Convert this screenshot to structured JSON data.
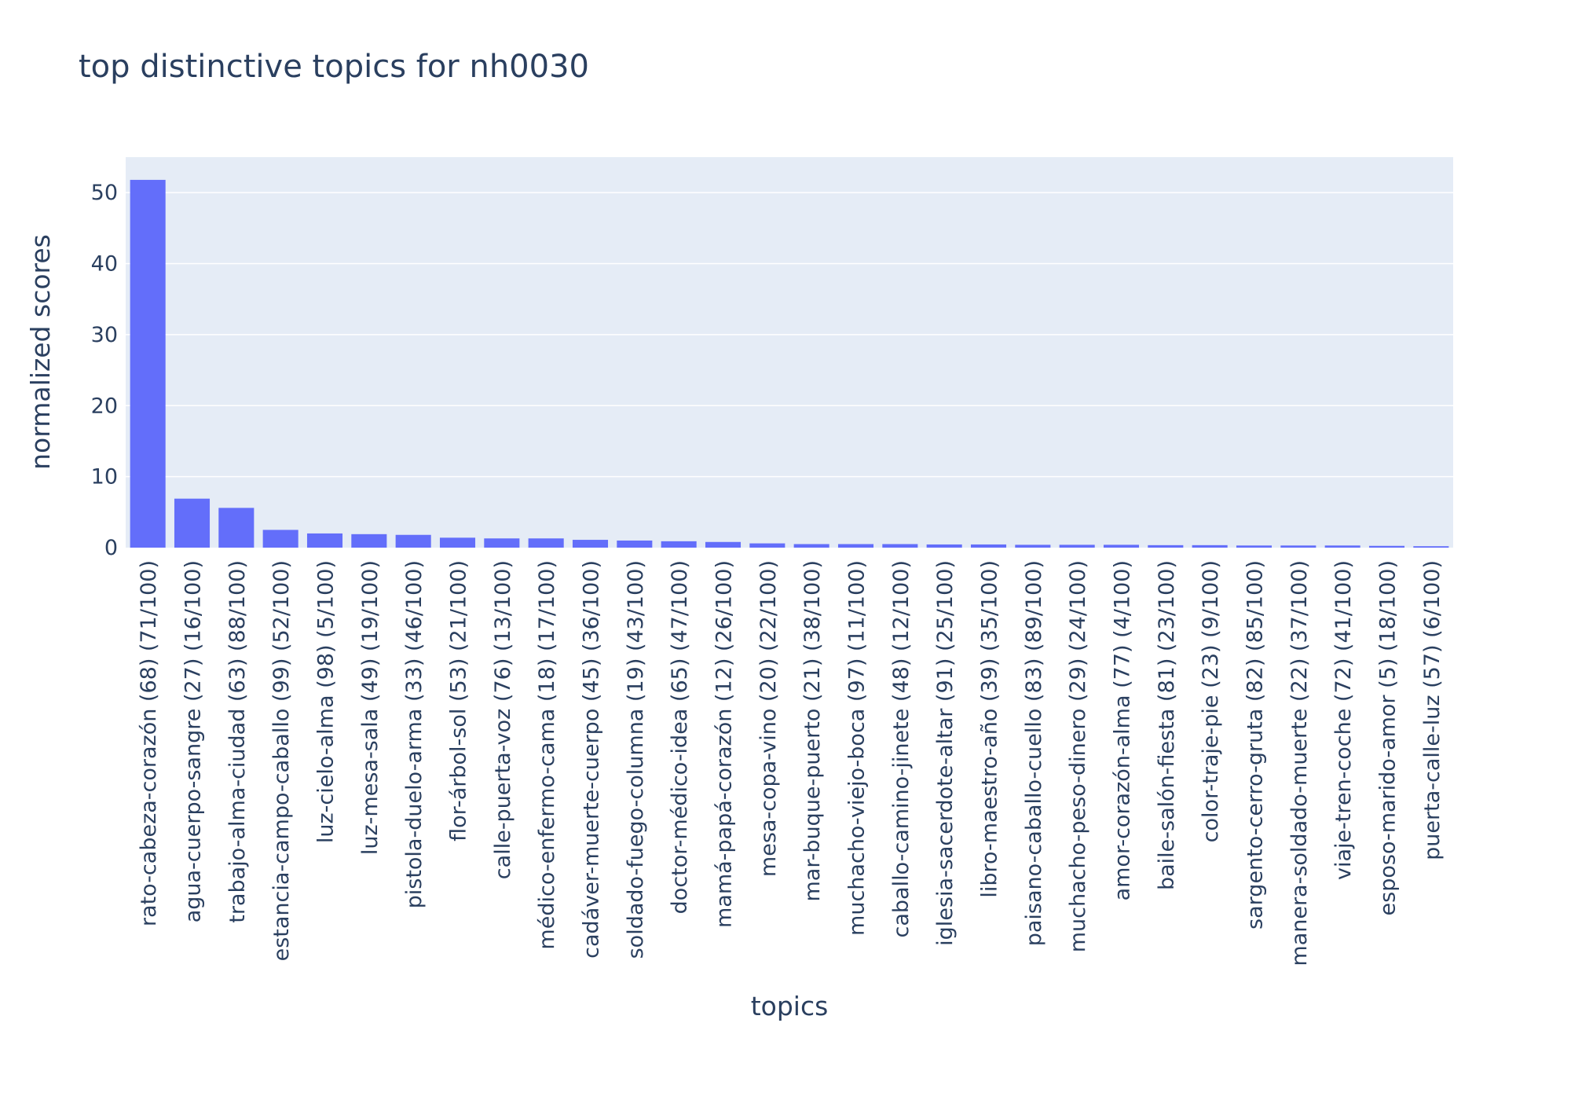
{
  "chart_data": {
    "type": "bar",
    "title": "top distinctive topics for nh0030",
    "xlabel": "topics",
    "ylabel": "normalized scores",
    "ylim": [
      0,
      55
    ],
    "yticks": [
      0,
      10,
      20,
      30,
      40,
      50
    ],
    "grid": true,
    "legend": "none",
    "colors": {
      "bar": "#636efa",
      "plot_bg": "#e5ecf6",
      "text": "#2a3f5f"
    },
    "categories": [
      "rato-cabeza-corazón (68) (71/100)",
      "agua-cuerpo-sangre (27) (16/100)",
      "trabajo-alma-ciudad (63) (88/100)",
      "estancia-campo-caballo (99) (52/100)",
      "luz-cielo-alma (98) (5/100)",
      "luz-mesa-sala (49) (19/100)",
      "pistola-duelo-arma (33) (46/100)",
      "flor-árbol-sol (53) (21/100)",
      "calle-puerta-voz (76) (13/100)",
      "médico-enfermo-cama (18) (17/100)",
      "cadáver-muerte-cuerpo (45) (36/100)",
      "soldado-fuego-columna (19) (43/100)",
      "doctor-médico-idea (65) (47/100)",
      "mamá-papá-corazón (12) (26/100)",
      "mesa-copa-vino (20) (22/100)",
      "mar-buque-puerto (21) (38/100)",
      "muchacho-viejo-boca (97) (11/100)",
      "caballo-camino-jinete (48) (12/100)",
      "iglesia-sacerdote-altar (91) (25/100)",
      "libro-maestro-año (39) (35/100)",
      "paisano-caballo-cuello (83) (89/100)",
      "muchacho-peso-dinero (29) (24/100)",
      "amor-corazón-alma (77) (4/100)",
      "baile-salón-fiesta (81) (23/100)",
      "color-traje-pie (23) (9/100)",
      "sargento-cerro-gruta (82) (85/100)",
      "manera-soldado-muerte (22) (37/100)",
      "viaje-tren-coche (72) (41/100)",
      "esposo-marido-amor (5) (18/100)",
      "puerta-calle-luz (57) (6/100)"
    ],
    "values": [
      51.8,
      6.9,
      5.6,
      2.5,
      2.0,
      1.9,
      1.8,
      1.4,
      1.3,
      1.3,
      1.1,
      1.0,
      0.9,
      0.8,
      0.6,
      0.5,
      0.5,
      0.5,
      0.45,
      0.45,
      0.4,
      0.4,
      0.4,
      0.35,
      0.35,
      0.3,
      0.3,
      0.3,
      0.25,
      0.2
    ]
  }
}
